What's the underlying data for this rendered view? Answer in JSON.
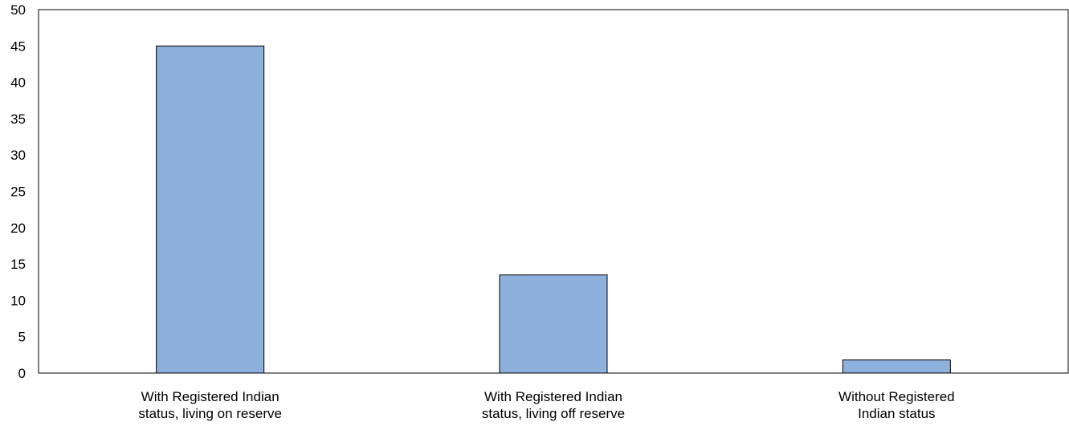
{
  "chart_data": {
    "type": "bar",
    "title": "",
    "xlabel": "",
    "ylabel": "",
    "categories": [
      [
        "With Registered Indian",
        "status, living on reserve"
      ],
      [
        "With Registered Indian",
        "status, living off reserve"
      ],
      [
        "Without Registered",
        "Indian status"
      ]
    ],
    "values": [
      45,
      13.5,
      1.8
    ],
    "ylim": [
      0,
      50
    ],
    "yticks": [
      0,
      5,
      10,
      15,
      20,
      25,
      30,
      35,
      40,
      45,
      50
    ],
    "grid": false,
    "legend": "none",
    "bar_color": "#8db0dd",
    "bar_edge_color": "#000000"
  }
}
